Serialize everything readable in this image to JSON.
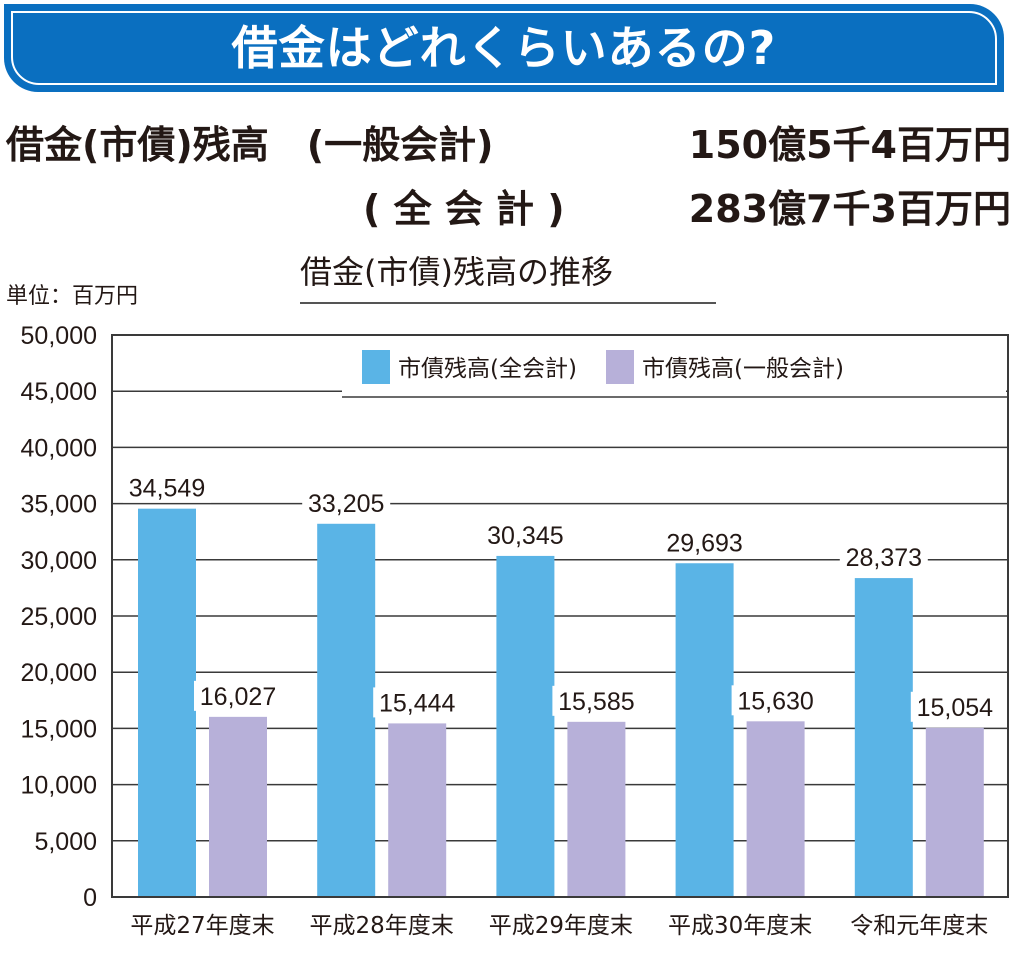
{
  "banner": {
    "title": "借金はどれくらいあるの?"
  },
  "summary": {
    "general": {
      "label": "借金(市債)残高　(一般会計)",
      "value": "150億5千4百万円"
    },
    "all": {
      "label": "( 全 会 計 )",
      "value": "283億7千3百万円"
    }
  },
  "colors": {
    "banner": "#0a6fc0",
    "all_accounts": "#5ab4e6",
    "general_account": "#b7b0d9"
  },
  "chart_data": {
    "type": "bar",
    "title": "借金(市債)残高の推移",
    "unit": "単位：百万円",
    "xlabel": "",
    "ylabel": "",
    "ylim": [
      0,
      50000
    ],
    "ytick_step": 5000,
    "yticks": [
      "0",
      "5,000",
      "10,000",
      "15,000",
      "20,000",
      "25,000",
      "30,000",
      "35,000",
      "40,000",
      "45,000",
      "50,000"
    ],
    "grid": true,
    "legend_position": "top-right",
    "categories": [
      "平成27年度末",
      "平成28年度末",
      "平成29年度末",
      "平成30年度末",
      "令和元年度末"
    ],
    "series": [
      {
        "name": "市債残高(全会計)",
        "color": "#5ab4e6",
        "values": [
          34549,
          33205,
          30345,
          29693,
          28373
        ],
        "labels": [
          "34,549",
          "33,205",
          "30,345",
          "29,693",
          "28,373"
        ]
      },
      {
        "name": "市債残高(一般会計)",
        "color": "#b7b0d9",
        "values": [
          16027,
          15444,
          15585,
          15630,
          15054
        ],
        "labels": [
          "16,027",
          "15,444",
          "15,585",
          "15,630",
          "15,054"
        ]
      }
    ]
  }
}
